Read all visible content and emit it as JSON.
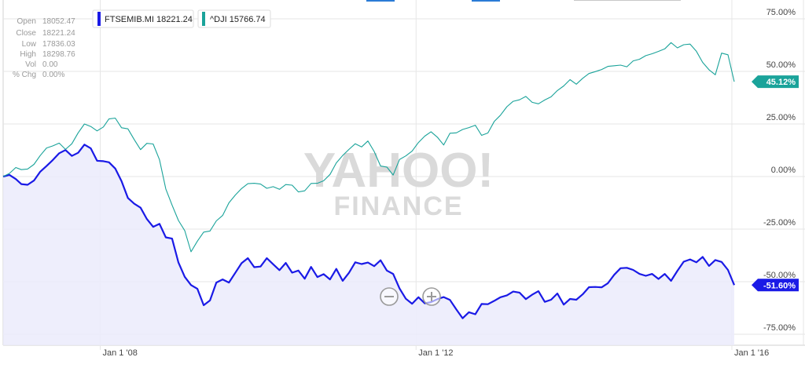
{
  "ohlc": {
    "rows": [
      {
        "label": "Open",
        "value": "18052.47"
      },
      {
        "label": "Close",
        "value": "18221.24"
      },
      {
        "label": "Low",
        "value": "17836.03"
      },
      {
        "label": "High",
        "value": "18298.76"
      },
      {
        "label": "Vol",
        "value": "0.00"
      },
      {
        "label": "% Chg",
        "value": "0.00%"
      }
    ]
  },
  "legend": [
    {
      "text": "FTSEMIB.MI 18221.24",
      "color": "#1a1ae6"
    },
    {
      "text": "^DJI 15766.74",
      "color": "#1aa39a"
    }
  ],
  "watermark": {
    "line1": "YAHOO!",
    "line2": "FINANCE"
  },
  "zoom_controls": {
    "zoom_out_icon": "minus-circle-icon",
    "zoom_in_icon": "plus-circle-icon"
  },
  "colors": {
    "ftse": "#1a1ae6",
    "dji": "#1aa39a",
    "grid": "#e6e6e6",
    "fill": "#ebebfb"
  },
  "chart_data": {
    "type": "line",
    "x_tick_labels": [
      "Jan 1 '08",
      "Jan 1 '12",
      "Jan 1 '16"
    ],
    "x_tick_years": [
      2008,
      2012,
      2016
    ],
    "x_range": [
      2006.77,
      2016.05
    ],
    "y_tick_labels": [
      "75.00%",
      "50.00%",
      "25.00%",
      "0.00%",
      "-25.00%",
      "-50.00%",
      "-75.00%"
    ],
    "y_tick_values": [
      75,
      50,
      25,
      0,
      -25,
      -50,
      -75
    ],
    "ylim": [
      -80,
      80
    ],
    "grid": true,
    "series": [
      {
        "name": "FTSEMIB.MI",
        "color": "#1a1ae6",
        "end_label": "-51.60%",
        "x": [
          2006.77,
          2006.85,
          2006.93,
          2007.0,
          2007.08,
          2007.16,
          2007.24,
          2007.32,
          2007.4,
          2007.48,
          2007.56,
          2007.64,
          2007.72,
          2007.8,
          2007.88,
          2007.96,
          2008.04,
          2008.11,
          2008.19,
          2008.27,
          2008.35,
          2008.43,
          2008.51,
          2008.59,
          2008.67,
          2008.75,
          2008.83,
          2008.91,
          2008.99,
          2009.07,
          2009.15,
          2009.23,
          2009.31,
          2009.39,
          2009.47,
          2009.55,
          2009.63,
          2009.71,
          2009.79,
          2009.87,
          2009.95,
          2010.03,
          2010.11,
          2010.19,
          2010.27,
          2010.35,
          2010.43,
          2010.51,
          2010.59,
          2010.67,
          2010.75,
          2010.83,
          2010.91,
          2010.99,
          2011.07,
          2011.15,
          2011.23,
          2011.31,
          2011.39,
          2011.47,
          2011.55,
          2011.63,
          2011.71,
          2011.79,
          2011.87,
          2011.95,
          2012.03,
          2012.11,
          2012.19,
          2012.27,
          2012.35,
          2012.43,
          2012.51,
          2012.59,
          2012.67,
          2012.75,
          2012.83,
          2012.91,
          2012.99,
          2013.07,
          2013.15,
          2013.23,
          2013.31,
          2013.39,
          2013.47,
          2013.55,
          2013.63,
          2013.71,
          2013.79,
          2013.87,
          2013.95,
          2014.03,
          2014.11,
          2014.19,
          2014.27,
          2014.35,
          2014.43,
          2014.51,
          2014.59,
          2014.67,
          2014.75,
          2014.83,
          2014.91,
          2014.99,
          2015.07,
          2015.15,
          2015.23,
          2015.31,
          2015.39,
          2015.47,
          2015.55,
          2015.63,
          2015.71,
          2015.79,
          2015.87,
          2015.95,
          2016.03
        ],
        "values": [
          0,
          0.8,
          -1.2,
          -3.6,
          -3.9,
          -1.9,
          2.3,
          5,
          7.9,
          11.1,
          12.6,
          9.8,
          11.3,
          15.2,
          13.4,
          7.5,
          7.3,
          6.8,
          3.8,
          -2.2,
          -10.2,
          -12.9,
          -14.8,
          -20.2,
          -23.9,
          -22.5,
          -28.9,
          -29.5,
          -40.9,
          -47.7,
          -51.6,
          -53.4,
          -61.2,
          -58.9,
          -50.4,
          -48.9,
          -50.4,
          -45.8,
          -41.2,
          -38.8,
          -43.1,
          -42.8,
          -38.8,
          -41.7,
          -44.5,
          -41.1,
          -45.7,
          -44.7,
          -48.6,
          -43,
          -47.8,
          -46.4,
          -48.9,
          -43.9,
          -49.6,
          -45.8,
          -40.8,
          -41.6,
          -40.9,
          -42.6,
          -39.8,
          -44.7,
          -46.3,
          -53.2,
          -58.1,
          -60.5,
          -57.4,
          -60.3,
          -59.7,
          -58.3,
          -57.3,
          -58.7,
          -63.2,
          -67.4,
          -64.5,
          -65.5,
          -60.6,
          -60.7,
          -59.1,
          -57.4,
          -56.5,
          -54.7,
          -55.2,
          -58.3,
          -56.2,
          -54.5,
          -59.6,
          -58.6,
          -55.6,
          -60.9,
          -58.2,
          -58.6,
          -56,
          -52.6,
          -52.5,
          -52.7,
          -50.7,
          -46.7,
          -43.6,
          -43.4,
          -44.4,
          -46.3,
          -47.2,
          -46.3,
          -48.7,
          -46.3,
          -49.6,
          -44.8,
          -40.5,
          -39.4,
          -40.8,
          -38.2,
          -42.5,
          -39.7,
          -40.6,
          -44.4,
          -51.6
        ]
      },
      {
        "name": "^DJI",
        "color": "#1aa39a",
        "end_label": "45.12%",
        "x": [
          2006.77,
          2006.85,
          2006.93,
          2007.0,
          2007.08,
          2007.16,
          2007.24,
          2007.32,
          2007.4,
          2007.48,
          2007.56,
          2007.64,
          2007.72,
          2007.8,
          2007.88,
          2007.96,
          2008.04,
          2008.11,
          2008.19,
          2008.27,
          2008.35,
          2008.43,
          2008.51,
          2008.59,
          2008.67,
          2008.75,
          2008.83,
          2008.91,
          2008.99,
          2009.07,
          2009.15,
          2009.23,
          2009.31,
          2009.39,
          2009.47,
          2009.55,
          2009.63,
          2009.71,
          2009.79,
          2009.87,
          2009.95,
          2010.03,
          2010.11,
          2010.19,
          2010.27,
          2010.35,
          2010.43,
          2010.51,
          2010.59,
          2010.67,
          2010.75,
          2010.83,
          2010.91,
          2010.99,
          2011.07,
          2011.15,
          2011.23,
          2011.31,
          2011.39,
          2011.47,
          2011.55,
          2011.63,
          2011.71,
          2011.79,
          2011.87,
          2011.95,
          2012.03,
          2012.11,
          2012.19,
          2012.27,
          2012.35,
          2012.43,
          2012.51,
          2012.59,
          2012.67,
          2012.75,
          2012.83,
          2012.91,
          2012.99,
          2013.07,
          2013.15,
          2013.23,
          2013.31,
          2013.39,
          2013.47,
          2013.55,
          2013.63,
          2013.71,
          2013.79,
          2013.87,
          2013.95,
          2014.03,
          2014.11,
          2014.19,
          2014.27,
          2014.35,
          2014.43,
          2014.51,
          2014.59,
          2014.67,
          2014.75,
          2014.83,
          2014.91,
          2014.99,
          2015.07,
          2015.15,
          2015.23,
          2015.31,
          2015.39,
          2015.47,
          2015.55,
          2015.63,
          2015.71,
          2015.79,
          2015.87,
          2015.95,
          2016.03
        ],
        "values": [
          0,
          1.5,
          4.3,
          3.3,
          3.6,
          5.8,
          10,
          13.6,
          14.6,
          15.9,
          12.9,
          15.6,
          20.8,
          25,
          23.8,
          21.7,
          23.6,
          27.4,
          27.8,
          23.2,
          22.7,
          17.6,
          12.8,
          15.8,
          15.5,
          8,
          -5.9,
          -13.6,
          -20.9,
          -25.7,
          -35.8,
          -30.7,
          -26.4,
          -25.9,
          -21.1,
          -18.5,
          -12.5,
          -8.8,
          -5.7,
          -3.4,
          -3.2,
          -3.6,
          -5.6,
          -4.8,
          -6.1,
          -3.8,
          -4.1,
          -7.3,
          -6.8,
          -3.3,
          -3.2,
          -2,
          1,
          6.5,
          10,
          12.9,
          15.6,
          14.1,
          16.9,
          11.9,
          5,
          4.5,
          0.7,
          8.1,
          9.8,
          12.1,
          16.2,
          19.2,
          21.3,
          18.7,
          15,
          20.6,
          20.8,
          22.4,
          23.3,
          24.4,
          19.6,
          20.7,
          26.2,
          29.2,
          33.2,
          35.8,
          36.5,
          38.1,
          35.3,
          34.6,
          36.4,
          37.9,
          40.9,
          43.1,
          46.1,
          43.9,
          46.7,
          49,
          49.9,
          50.9,
          52.4,
          52.7,
          53,
          52.2,
          55,
          55.8,
          57.5,
          58.4,
          59.5,
          60.7,
          63.7,
          61.2,
          62.7,
          63,
          59.6,
          54.3,
          50.8,
          48.4,
          58.7,
          57.9,
          45.1
        ]
      }
    ]
  }
}
